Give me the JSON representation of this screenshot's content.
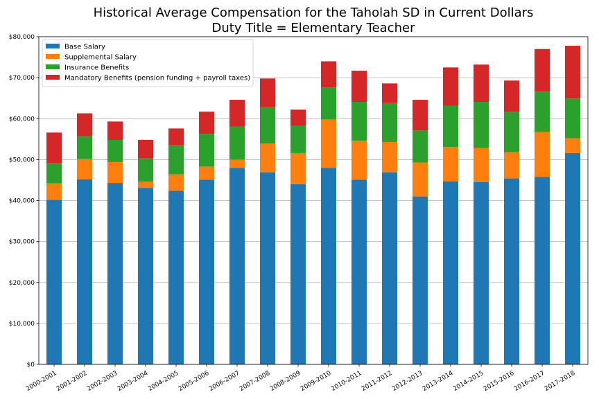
{
  "chart_data": {
    "type": "bar",
    "stacked": true,
    "title": "Historical Average Compensation for the Taholah SD in Current Dollars",
    "subtitle": "Duty Title = Elementary Teacher",
    "xlabel": "",
    "ylabel": "",
    "ylim": [
      0,
      80000
    ],
    "yticks": [
      0,
      10000,
      20000,
      30000,
      40000,
      50000,
      60000,
      70000,
      80000
    ],
    "ytick_labels": [
      "$0",
      "$10,000",
      "$20,000",
      "$30,000",
      "$40,000",
      "$50,000",
      "$60,000",
      "$70,000",
      "$80,000"
    ],
    "grid": "horizontal",
    "legend_position": "top-left",
    "categories": [
      "2000-2001",
      "2001-2002",
      "2002-2003",
      "2003-2004",
      "2004-2005",
      "2005-2006",
      "2006-2007",
      "2007-2008",
      "2008-2009",
      "2009-2010",
      "2010-2011",
      "2011-2012",
      "2012-2013",
      "2013-2014",
      "2014-2015",
      "2015-2016",
      "2016-2017",
      "2017-2018"
    ],
    "series": [
      {
        "name": "Base Salary",
        "color": "#1f77b4",
        "values": [
          40200,
          45200,
          44300,
          43100,
          42400,
          45100,
          48000,
          46900,
          44000,
          48000,
          45100,
          46900,
          41000,
          44700,
          44500,
          45400,
          45800,
          51600
        ]
      },
      {
        "name": "Supplemental Salary",
        "color": "#ff7f0e",
        "values": [
          4000,
          4900,
          5100,
          1500,
          4000,
          3200,
          2000,
          7000,
          7600,
          11800,
          9500,
          7400,
          8300,
          8400,
          8300,
          6400,
          10900,
          3600
        ]
      },
      {
        "name": "Insurance Benefits",
        "color": "#2ca02c",
        "values": [
          5000,
          5600,
          5400,
          5700,
          7100,
          8000,
          8100,
          8900,
          6600,
          7800,
          9500,
          9500,
          7800,
          10000,
          11300,
          9800,
          9900,
          9700
        ]
      },
      {
        "name": "Mandatory Benefits (pension funding + payroll taxes)",
        "color": "#d62728",
        "values": [
          7400,
          5600,
          4500,
          4500,
          4100,
          5400,
          6500,
          7000,
          4000,
          6400,
          7600,
          4800,
          7500,
          9400,
          9100,
          7700,
          10400,
          12900
        ]
      }
    ]
  }
}
